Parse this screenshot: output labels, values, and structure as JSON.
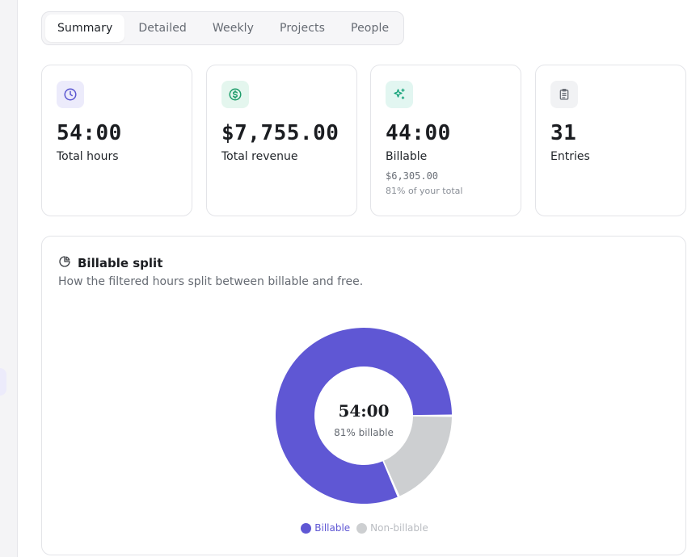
{
  "tabs": [
    {
      "label": "Summary",
      "active": true
    },
    {
      "label": "Detailed"
    },
    {
      "label": "Weekly"
    },
    {
      "label": "Projects"
    },
    {
      "label": "People"
    }
  ],
  "stats": [
    {
      "icon": "clock-icon",
      "value": "54:00",
      "label": "Total hours",
      "accent": "#5b57d1",
      "icon_bg": "#ecebfb"
    },
    {
      "icon": "dollar-circle-icon",
      "value": "$7,755.00",
      "label": "Total revenue",
      "accent": "#1f9d6b",
      "icon_bg": "#e4f6ee"
    },
    {
      "icon": "sparkles-icon",
      "value": "44:00",
      "label": "Billable",
      "sub": "$6,305.00",
      "sub2": "81% of your total",
      "accent": "#14a37a",
      "icon_bg": "#e2f6f1"
    },
    {
      "icon": "clipboard-icon",
      "value": "31",
      "label": "Entries",
      "accent": "#6a6f77",
      "icon_bg": "#f1f2f4"
    }
  ],
  "billable_split": {
    "title": "Billable split",
    "description": "How the filtered hours split between billable and free.",
    "center_value": "54:00",
    "center_label": "81% billable"
  },
  "chart_data": {
    "type": "pie",
    "title": "Billable split",
    "categories": [
      "Billable",
      "Non-billable"
    ],
    "values": [
      44,
      10
    ],
    "colors": [
      "#5f57d4",
      "#cdcfd1"
    ],
    "donut": true
  },
  "legend": {
    "billable_label": "Billable",
    "nonbillable_label": "Non-billable",
    "billable_color": "#5f57d4",
    "nonbillable_color": "#cdcfd1"
  }
}
